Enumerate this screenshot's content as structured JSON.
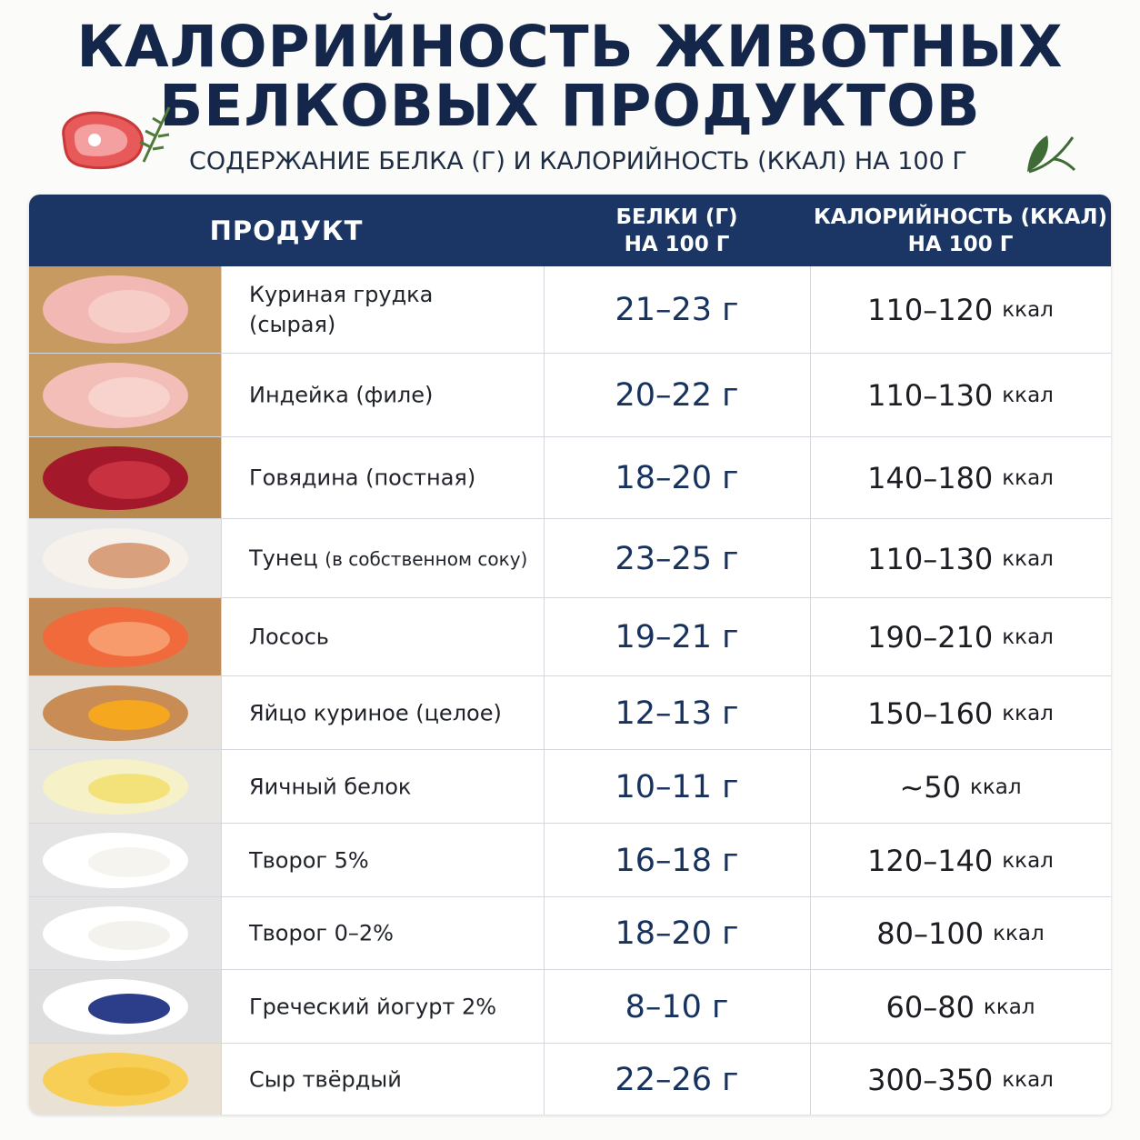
{
  "header": {
    "title_lines": [
      "КАЛОРИЙНОСТЬ ЖИВОТНЫХ",
      "БЕЛКОВЫХ ПРОДУКТОВ"
    ],
    "subtitle": "СОДЕРЖАНИЕ БЕЛКА (Г) И КАЛОРИЙНОСТЬ (ККАЛ) НА 100 Г"
  },
  "table": {
    "columns": [
      "ПРОДУКТ",
      "БЕЛКИ (Г)\nНА 100 Г",
      "КАЛОРИЙНОСТЬ (ККАЛ)\nНА 100 Г"
    ],
    "rows": [
      {
        "name": "Куриная грудка\n(сырая)",
        "protein": "21–23 г",
        "calories": "110–120",
        "unit": "ккал"
      },
      {
        "name": "Индейка (филе)",
        "protein": "20–22 г",
        "calories": "110–130",
        "unit": "ккал"
      },
      {
        "name": "Говядина (постная)",
        "protein": "18–20 г",
        "calories": "140–180",
        "unit": "ккал"
      },
      {
        "name": "Тунец",
        "note": "(в собственном соку)",
        "protein": "23–25 г",
        "calories": "110–130",
        "unit": "ккал"
      },
      {
        "name": "Лосось",
        "protein": "19–21 г",
        "calories": "190–210",
        "unit": "ккал"
      },
      {
        "name": "Яйцо куриное (целое)",
        "protein": "12–13 г",
        "calories": "150–160",
        "unit": "ккал"
      },
      {
        "name": "Яичный белок",
        "protein": "10–11 г",
        "calories": "~50",
        "unit": "ккал"
      },
      {
        "name": "Творог 5%",
        "protein": "16–18 г",
        "calories": "120–140",
        "unit": "ккал"
      },
      {
        "name": "Творог 0–2%",
        "protein": "18–20 г",
        "calories": "80–100",
        "unit": "ккал"
      },
      {
        "name": "Греческий йогурт 2%",
        "protein": "8–10 г",
        "calories": "60–80",
        "unit": "ккал"
      },
      {
        "name": "Сыр твёрдый",
        "protein": "22–26 г",
        "calories": "300–350",
        "unit": "ккал"
      }
    ]
  }
}
